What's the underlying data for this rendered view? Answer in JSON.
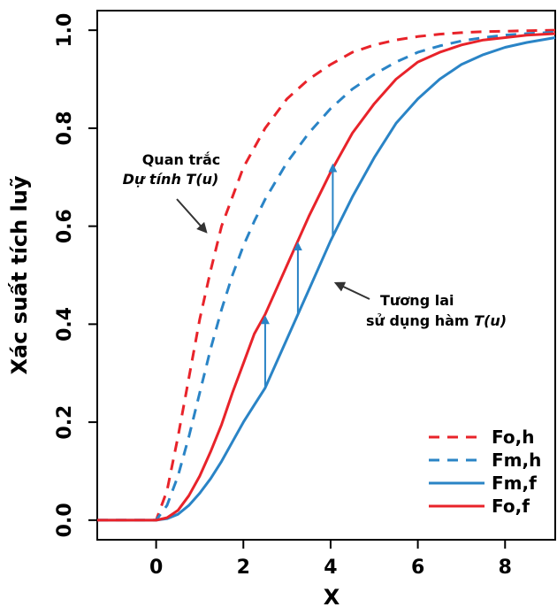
{
  "chart_data": {
    "type": "line",
    "title": "",
    "xlabel": "X",
    "ylabel": "Xác suất tích luỹ",
    "xlim": [
      -1.35,
      9.15
    ],
    "ylim": [
      -0.04,
      1.04
    ],
    "xticks": [
      "0",
      "2",
      "4",
      "6",
      "8"
    ],
    "yticks": [
      "0.0",
      "0.2",
      "0.4",
      "0.6",
      "0.8",
      "1.0"
    ],
    "grid": false,
    "legend_position": "bottom-right",
    "series": [
      {
        "name": "Fo,h",
        "color": "#e8232a",
        "dash": "dashed",
        "x": [
          -1.35,
          0,
          0.25,
          0.5,
          0.75,
          1,
          1.25,
          1.5,
          2,
          2.5,
          3,
          3.5,
          4,
          4.5,
          5,
          5.5,
          6,
          6.5,
          7,
          7.5,
          8,
          8.5,
          9.15
        ],
        "y": [
          0,
          0,
          0.06,
          0.17,
          0.29,
          0.41,
          0.51,
          0.6,
          0.72,
          0.8,
          0.86,
          0.9,
          0.93,
          0.955,
          0.97,
          0.98,
          0.987,
          0.992,
          0.995,
          0.997,
          0.998,
          0.999,
          1.0
        ]
      },
      {
        "name": "Fm,h",
        "color": "#2a84c6",
        "dash": "dashed",
        "x": [
          -1.35,
          0,
          0.25,
          0.5,
          0.75,
          1,
          1.25,
          1.5,
          1.75,
          2,
          2.25,
          2.5,
          3,
          3.5,
          4,
          4.5,
          5,
          5.5,
          6,
          6.5,
          7,
          7.5,
          8,
          8.5,
          9.15
        ],
        "y": [
          0,
          0,
          0.03,
          0.09,
          0.17,
          0.26,
          0.35,
          0.43,
          0.5,
          0.56,
          0.61,
          0.655,
          0.73,
          0.79,
          0.84,
          0.88,
          0.91,
          0.935,
          0.955,
          0.968,
          0.978,
          0.985,
          0.99,
          0.993,
          0.996
        ]
      },
      {
        "name": "Fm,f",
        "color": "#2a84c6",
        "dash": "solid",
        "x": [
          -1.35,
          0,
          0.25,
          0.5,
          0.75,
          1,
          1.25,
          1.5,
          1.75,
          2,
          2.25,
          2.5,
          3,
          3.5,
          4,
          4.5,
          5,
          5.5,
          6,
          6.5,
          7,
          7.5,
          8,
          8.5,
          9.15
        ],
        "y": [
          0,
          0,
          0.003,
          0.012,
          0.03,
          0.055,
          0.085,
          0.12,
          0.16,
          0.2,
          0.235,
          0.27,
          0.37,
          0.47,
          0.57,
          0.66,
          0.74,
          0.81,
          0.86,
          0.9,
          0.93,
          0.95,
          0.965,
          0.975,
          0.985
        ]
      },
      {
        "name": "Fo,f",
        "color": "#e8232a",
        "dash": "solid",
        "x": [
          -1.35,
          0,
          0.25,
          0.5,
          0.75,
          1,
          1.25,
          1.5,
          1.75,
          2,
          2.25,
          2.5,
          3,
          3.5,
          4,
          4.5,
          5,
          5.5,
          6,
          6.5,
          7,
          7.5,
          8,
          8.5,
          9.15
        ],
        "y": [
          0,
          0,
          0.005,
          0.02,
          0.05,
          0.09,
          0.14,
          0.195,
          0.26,
          0.32,
          0.38,
          0.42,
          0.52,
          0.62,
          0.71,
          0.79,
          0.85,
          0.9,
          0.935,
          0.955,
          0.97,
          0.98,
          0.985,
          0.99,
          0.993
        ]
      }
    ],
    "arrows": [
      {
        "x": 2.5,
        "y_from": 0.27,
        "y_to": 0.42
      },
      {
        "x": 3.25,
        "y_from": 0.42,
        "y_to": 0.57
      },
      {
        "x": 4.05,
        "y_from": 0.58,
        "y_to": 0.73
      }
    ],
    "annotations": [
      {
        "lines": [
          "Quan trắc",
          "Dự tính T(u)"
        ],
        "italic_line": 1
      },
      {
        "lines": [
          "Tương lai",
          "sử dụng hàm T(u)"
        ],
        "italic_suffix": "T(u)"
      }
    ]
  }
}
